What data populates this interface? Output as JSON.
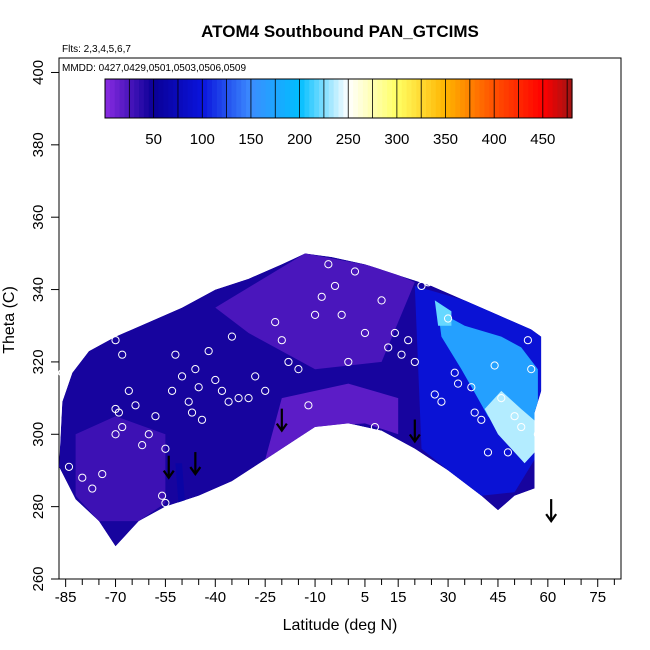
{
  "chart_data": {
    "type": "heatmap",
    "title": "ATOM4 Southbound PAN_GTCIMS",
    "flights_note": "Flts: 2,3,4,5,6,7",
    "dates_note": "MMDD: 0427,0429,0501,0503,0506,0509",
    "xlabel": "Latitude (deg N)",
    "ylabel": "Theta (C)",
    "xlim": [
      -87,
      82
    ],
    "ylim": [
      260,
      404
    ],
    "x_ticks": [
      -85,
      -70,
      -55,
      -40,
      -25,
      -10,
      5,
      15,
      30,
      45,
      60,
      75
    ],
    "x_minor_ticks": [
      -80,
      -75,
      -65,
      -60,
      -50,
      -45,
      -35,
      -30,
      -20,
      -15,
      -5,
      0,
      10,
      20,
      25,
      35,
      40,
      50,
      55,
      65,
      70,
      80
    ],
    "y_ticks": [
      260,
      280,
      300,
      320,
      340,
      360,
      380,
      400
    ],
    "colorbar": {
      "range": [
        0,
        480
      ],
      "ticks": [
        50,
        100,
        150,
        200,
        250,
        300,
        350,
        400,
        450
      ],
      "stops": [
        {
          "v": 0,
          "c": "#8a2be2"
        },
        {
          "v": 50,
          "c": "#0a0096"
        },
        {
          "v": 100,
          "c": "#0a14dc"
        },
        {
          "v": 150,
          "c": "#3c8cff"
        },
        {
          "v": 200,
          "c": "#00beff"
        },
        {
          "v": 250,
          "c": "#ffffff"
        },
        {
          "v": 300,
          "c": "#ffff64"
        },
        {
          "v": 350,
          "c": "#ffb400"
        },
        {
          "v": 400,
          "c": "#ff5000"
        },
        {
          "v": 450,
          "c": "#ff0000"
        },
        {
          "v": 480,
          "c": "#a01414"
        }
      ]
    },
    "field_boundary_top": [
      [
        -87,
        291
      ],
      [
        -86,
        309
      ],
      [
        -83,
        317
      ],
      [
        -78,
        323
      ],
      [
        -70,
        327
      ],
      [
        -60,
        331
      ],
      [
        -50,
        335
      ],
      [
        -40,
        340
      ],
      [
        -30,
        343
      ],
      [
        -20,
        347
      ],
      [
        -13,
        350
      ],
      [
        -5,
        349
      ],
      [
        5,
        347
      ],
      [
        15,
        344
      ],
      [
        25,
        341
      ],
      [
        35,
        337
      ],
      [
        45,
        333
      ],
      [
        55,
        329
      ],
      [
        58,
        327
      ],
      [
        58,
        312
      ],
      [
        56,
        306
      ],
      [
        56,
        296
      ]
    ],
    "field_boundary_bottom": [
      [
        -87,
        291
      ],
      [
        -82,
        282
      ],
      [
        -75,
        276
      ],
      [
        -70,
        269
      ],
      [
        -63,
        276
      ],
      [
        -55,
        280
      ],
      [
        -45,
        283
      ],
      [
        -35,
        287
      ],
      [
        -25,
        293
      ],
      [
        -15,
        299
      ],
      [
        -10,
        302
      ],
      [
        0,
        303
      ],
      [
        10,
        301
      ],
      [
        20,
        296
      ],
      [
        30,
        290
      ],
      [
        40,
        283
      ],
      [
        45,
        279
      ],
      [
        50,
        283
      ],
      [
        56,
        285
      ],
      [
        56,
        296
      ]
    ],
    "field_zones": [
      {
        "name": "background",
        "value": 45
      },
      {
        "name": "upper-band",
        "value": 25,
        "polygon": [
          [
            -40,
            335
          ],
          [
            -13,
            350
          ],
          [
            10,
            346
          ],
          [
            20,
            342
          ],
          [
            10,
            320
          ],
          [
            -10,
            318
          ],
          [
            -30,
            328
          ]
        ]
      },
      {
        "name": "lower-middle",
        "value": 18,
        "polygon": [
          [
            -25,
            293
          ],
          [
            -10,
            302
          ],
          [
            5,
            303
          ],
          [
            15,
            300
          ],
          [
            15,
            310
          ],
          [
            0,
            314
          ],
          [
            -20,
            310
          ]
        ]
      },
      {
        "name": "south-low",
        "value": 30,
        "polygon": [
          [
            -75,
            276
          ],
          [
            -63,
            276
          ],
          [
            -55,
            281
          ],
          [
            -55,
            300
          ],
          [
            -70,
            305
          ],
          [
            -82,
            300
          ],
          [
            -82,
            283
          ]
        ]
      },
      {
        "name": "north-blue",
        "value": 95,
        "polygon": [
          [
            20,
            341
          ],
          [
            35,
            337
          ],
          [
            45,
            333
          ],
          [
            55,
            329
          ],
          [
            58,
            327
          ],
          [
            58,
            296
          ],
          [
            50,
            284
          ],
          [
            40,
            283
          ],
          [
            30,
            290
          ],
          [
            22,
            296
          ]
        ]
      },
      {
        "name": "north-light",
        "value": 170,
        "polygon": [
          [
            27,
            334
          ],
          [
            35,
            330
          ],
          [
            46,
            327
          ],
          [
            52,
            324
          ],
          [
            57,
            318
          ],
          [
            57,
            300
          ],
          [
            52,
            295
          ],
          [
            42,
            305
          ],
          [
            34,
            318
          ],
          [
            28,
            327
          ]
        ]
      },
      {
        "name": "north-highlight",
        "value": 235,
        "polygon": [
          [
            46,
            312
          ],
          [
            52,
            307
          ],
          [
            57,
            303
          ],
          [
            57,
            296
          ],
          [
            53,
            292
          ],
          [
            45,
            300
          ],
          [
            41,
            307
          ]
        ]
      },
      {
        "name": "north-streak",
        "value": 220,
        "polygon": [
          [
            26,
            337
          ],
          [
            31,
            334
          ],
          [
            31,
            330
          ],
          [
            27,
            330
          ]
        ]
      },
      {
        "name": "south-dark-streak",
        "value": 60,
        "polygon": [
          [
            -52,
            292
          ],
          [
            -50,
            292
          ],
          [
            -49,
            280
          ],
          [
            -51,
            280
          ]
        ]
      }
    ],
    "sample_points": [
      [
        -86,
        317
      ],
      [
        -84,
        291
      ],
      [
        -80,
        288
      ],
      [
        -77,
        285
      ],
      [
        -74,
        289
      ],
      [
        -70,
        300
      ],
      [
        -70,
        307
      ],
      [
        -69,
        306
      ],
      [
        -68,
        302
      ],
      [
        -70,
        326
      ],
      [
        -68,
        322
      ],
      [
        -66,
        312
      ],
      [
        -64,
        308
      ],
      [
        -62,
        297
      ],
      [
        -60,
        300
      ],
      [
        -58,
        305
      ],
      [
        -56,
        283
      ],
      [
        -55,
        281
      ],
      [
        -55,
        296
      ],
      [
        -53,
        312
      ],
      [
        -52,
        322
      ],
      [
        -50,
        316
      ],
      [
        -48,
        309
      ],
      [
        -47,
        306
      ],
      [
        -46,
        318
      ],
      [
        -45,
        313
      ],
      [
        -44,
        304
      ],
      [
        -42,
        323
      ],
      [
        -40,
        315
      ],
      [
        -38,
        312
      ],
      [
        -36,
        309
      ],
      [
        -35,
        327
      ],
      [
        -33,
        310
      ],
      [
        -30,
        310
      ],
      [
        -28,
        316
      ],
      [
        -25,
        312
      ],
      [
        -22,
        331
      ],
      [
        -20,
        326
      ],
      [
        -18,
        320
      ],
      [
        -15,
        318
      ],
      [
        -12,
        308
      ],
      [
        -10,
        333
      ],
      [
        -8,
        338
      ],
      [
        -6,
        347
      ],
      [
        -4,
        341
      ],
      [
        -2,
        333
      ],
      [
        0,
        320
      ],
      [
        2,
        345
      ],
      [
        5,
        328
      ],
      [
        8,
        302
      ],
      [
        10,
        337
      ],
      [
        12,
        324
      ],
      [
        14,
        328
      ],
      [
        16,
        322
      ],
      [
        18,
        326
      ],
      [
        20,
        320
      ],
      [
        22,
        341
      ],
      [
        24,
        342
      ],
      [
        26,
        311
      ],
      [
        28,
        309
      ],
      [
        30,
        332
      ],
      [
        32,
        317
      ],
      [
        33,
        314
      ],
      [
        35,
        343
      ],
      [
        36,
        341
      ],
      [
        37,
        313
      ],
      [
        38,
        306
      ],
      [
        40,
        304
      ],
      [
        42,
        295
      ],
      [
        44,
        319
      ],
      [
        46,
        310
      ],
      [
        48,
        295
      ],
      [
        50,
        305
      ],
      [
        52,
        302
      ],
      [
        54,
        326
      ],
      [
        55,
        318
      ],
      [
        57,
        300
      ]
    ],
    "flight_arrows": [
      [
        -54,
        288
      ],
      [
        -46,
        289
      ],
      [
        -20,
        301
      ],
      [
        20,
        298
      ],
      [
        61,
        276
      ]
    ]
  }
}
